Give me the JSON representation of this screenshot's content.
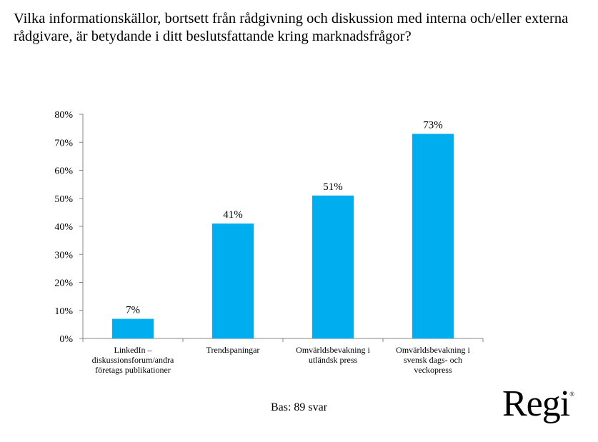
{
  "header": {
    "title": "Vilka informationskällor, bortsett från rådgivning och diskussion med interna och/eller externa rådgivare, är betydande i ditt beslutsfattande kring marknadsfrågor?"
  },
  "footer": {
    "base_note": "Bas: 89 svar",
    "logo_text": "Regi",
    "logo_mark": "®"
  },
  "colors": {
    "bar": "#00AEEF",
    "axis": "#868686"
  },
  "chart_data": {
    "type": "bar",
    "categories": [
      [
        "LinkedIn –",
        "diskussionsforum/andra",
        "företags publikationer"
      ],
      [
        "Trendspaningar"
      ],
      [
        "Omvärldsbevakning i",
        "utländsk press"
      ],
      [
        "Omvärldsbevakning i",
        "svensk dags- och",
        "veckopress"
      ]
    ],
    "values": [
      7,
      41,
      51,
      73
    ],
    "data_labels": [
      "7%",
      "41%",
      "51%",
      "73%"
    ],
    "ylim": [
      0,
      80
    ],
    "yticks": [
      0,
      10,
      20,
      30,
      40,
      50,
      60,
      70,
      80
    ],
    "ytick_labels": [
      "0%",
      "10%",
      "20%",
      "30%",
      "40%",
      "50%",
      "60%",
      "70%",
      "80%"
    ],
    "grid": false,
    "legend": "none"
  }
}
